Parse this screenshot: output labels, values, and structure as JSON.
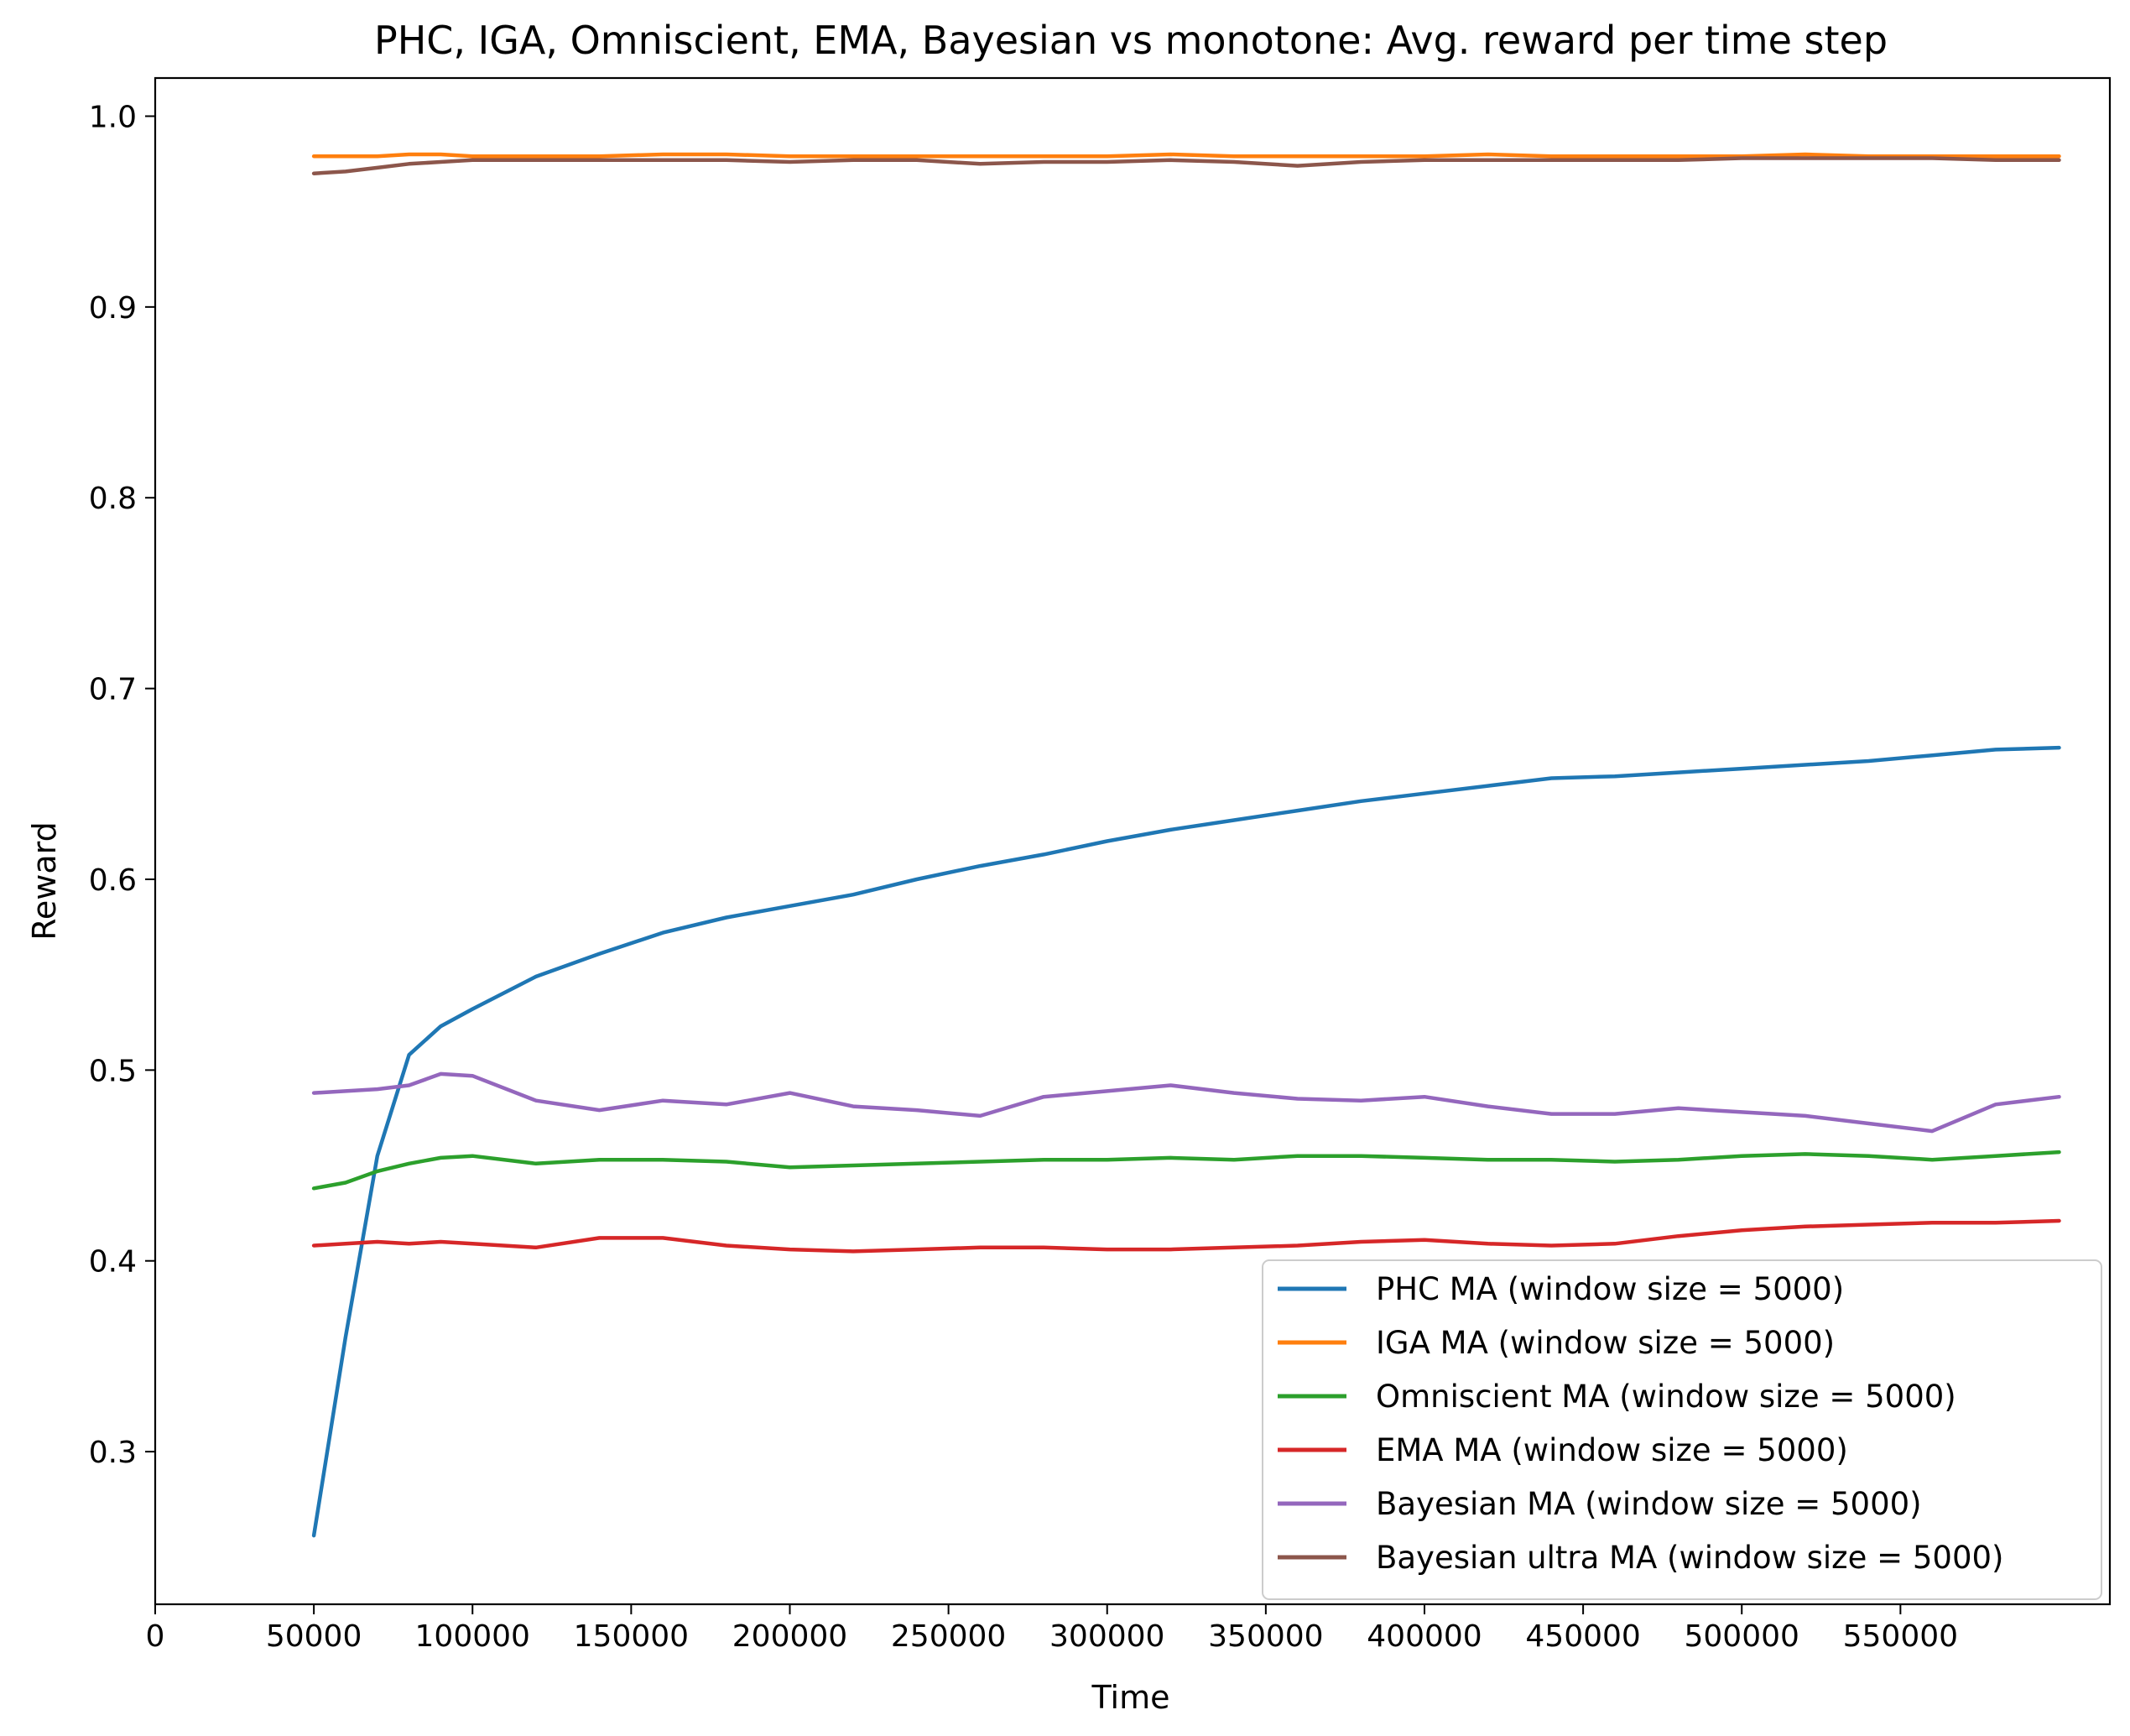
{
  "chart_data": {
    "type": "line",
    "title": "PHC, IGA, Omniscient, EMA, Bayesian vs monotone: Avg. reward per time step",
    "xlabel": "Time",
    "ylabel": "Reward",
    "xlim": [
      0,
      616000
    ],
    "ylim": [
      0.22,
      1.02
    ],
    "xticks": [
      0,
      50000,
      100000,
      150000,
      200000,
      250000,
      300000,
      350000,
      400000,
      450000,
      500000,
      550000
    ],
    "yticks": [
      0.3,
      0.4,
      0.5,
      0.6,
      0.7,
      0.8,
      0.9,
      1.0
    ],
    "ytick_labels": [
      "0.3",
      "0.4",
      "0.5",
      "0.6",
      "0.7",
      "0.8",
      "0.9",
      "1.0"
    ],
    "grid": false,
    "legend_position": "lower-right",
    "x": [
      50000,
      60000,
      70000,
      80000,
      90000,
      100000,
      120000,
      140000,
      160000,
      180000,
      200000,
      220000,
      240000,
      260000,
      280000,
      300000,
      320000,
      340000,
      360000,
      380000,
      400000,
      420000,
      440000,
      460000,
      480000,
      500000,
      520000,
      540000,
      560000,
      580000,
      600000
    ],
    "series": [
      {
        "name": "PHC MA (window size = 5000)",
        "color": "#1f77b4",
        "values": [
          0.256,
          0.36,
          0.455,
          0.508,
          0.523,
          0.532,
          0.549,
          0.561,
          0.572,
          0.58,
          0.586,
          0.592,
          0.6,
          0.607,
          0.613,
          0.62,
          0.626,
          0.631,
          0.636,
          0.641,
          0.645,
          0.649,
          0.653,
          0.654,
          0.656,
          0.658,
          0.66,
          0.662,
          0.665,
          0.668,
          0.669
        ]
      },
      {
        "name": "IGA MA (window size = 5000)",
        "color": "#ff7f0e",
        "values": [
          0.979,
          0.979,
          0.979,
          0.98,
          0.98,
          0.979,
          0.979,
          0.979,
          0.98,
          0.98,
          0.979,
          0.979,
          0.979,
          0.979,
          0.979,
          0.979,
          0.98,
          0.979,
          0.979,
          0.979,
          0.979,
          0.98,
          0.979,
          0.979,
          0.979,
          0.979,
          0.98,
          0.979,
          0.979,
          0.979,
          0.979
        ]
      },
      {
        "name": "Omniscient MA (window size = 5000)",
        "color": "#2ca02c",
        "values": [
          0.438,
          0.441,
          0.447,
          0.451,
          0.454,
          0.455,
          0.451,
          0.453,
          0.453,
          0.452,
          0.449,
          0.45,
          0.451,
          0.452,
          0.453,
          0.453,
          0.454,
          0.453,
          0.455,
          0.455,
          0.454,
          0.453,
          0.453,
          0.452,
          0.453,
          0.455,
          0.456,
          0.455,
          0.453,
          0.455,
          0.457
        ]
      },
      {
        "name": "EMA MA (window size = 5000)",
        "color": "#d62728",
        "values": [
          0.408,
          0.409,
          0.41,
          0.409,
          0.41,
          0.409,
          0.407,
          0.412,
          0.412,
          0.408,
          0.406,
          0.405,
          0.406,
          0.407,
          0.407,
          0.406,
          0.406,
          0.407,
          0.408,
          0.41,
          0.411,
          0.409,
          0.408,
          0.409,
          0.413,
          0.416,
          0.418,
          0.419,
          0.42,
          0.42,
          0.421
        ]
      },
      {
        "name": "Bayesian MA (window size = 5000)",
        "color": "#9467bd",
        "values": [
          0.488,
          0.489,
          0.49,
          0.492,
          0.498,
          0.497,
          0.484,
          0.479,
          0.484,
          0.482,
          0.488,
          0.481,
          0.479,
          0.476,
          0.486,
          0.489,
          0.492,
          0.488,
          0.485,
          0.484,
          0.486,
          0.481,
          0.477,
          0.477,
          0.48,
          0.478,
          0.476,
          0.472,
          0.468,
          0.482,
          0.486
        ]
      },
      {
        "name": "Bayesian ultra MA (window size = 5000)",
        "color": "#8c564b",
        "values": [
          0.97,
          0.971,
          0.973,
          0.975,
          0.976,
          0.977,
          0.977,
          0.977,
          0.977,
          0.977,
          0.976,
          0.977,
          0.977,
          0.975,
          0.976,
          0.976,
          0.977,
          0.976,
          0.974,
          0.976,
          0.977,
          0.977,
          0.977,
          0.977,
          0.977,
          0.978,
          0.978,
          0.978,
          0.978,
          0.977,
          0.977
        ]
      }
    ]
  }
}
